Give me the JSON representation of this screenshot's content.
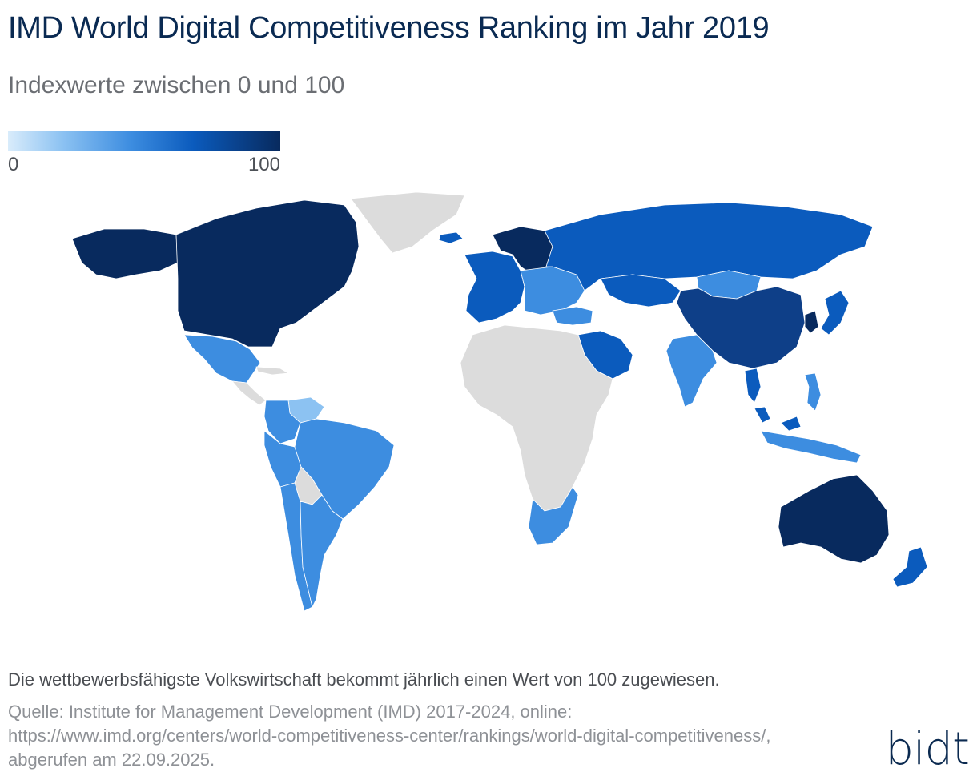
{
  "title": "IMD World Digital Competitiveness Ranking im Jahr 2019",
  "subtitle": "Indexwerte zwischen 0 und 100",
  "legend": {
    "min_label": "0",
    "max_label": "100",
    "colors": [
      "#d9ecfb",
      "#8cc2f2",
      "#3d8de0",
      "#0b5bbd",
      "#082a5e"
    ]
  },
  "no_data_color": "#dcdcdc",
  "map": {
    "type": "choropleth",
    "regions": [
      {
        "name": "North America (USA, Canada)",
        "color": "#082a5e"
      },
      {
        "name": "Alaska",
        "color": "#082a5e"
      },
      {
        "name": "Greenland",
        "color": "#dcdcdc"
      },
      {
        "name": "Iceland",
        "color": "#0b5bbd"
      },
      {
        "name": "Mexico",
        "color": "#3d8de0"
      },
      {
        "name": "Central America",
        "color": "#dcdcdc"
      },
      {
        "name": "Cuba",
        "color": "#dcdcdc"
      },
      {
        "name": "Colombia",
        "color": "#3d8de0"
      },
      {
        "name": "Venezuela",
        "color": "#8cc2f2"
      },
      {
        "name": "Brazil",
        "color": "#3d8de0"
      },
      {
        "name": "Peru",
        "color": "#3d8de0"
      },
      {
        "name": "Bolivia",
        "color": "#dcdcdc"
      },
      {
        "name": "Chile",
        "color": "#3d8de0"
      },
      {
        "name": "Argentina",
        "color": "#3d8de0"
      },
      {
        "name": "Western Europe",
        "color": "#0b5bbd"
      },
      {
        "name": "Nordics",
        "color": "#082a5e"
      },
      {
        "name": "Russia",
        "color": "#0b5bbd"
      },
      {
        "name": "Eastern Europe",
        "color": "#3d8de0"
      },
      {
        "name": "Turkey",
        "color": "#3d8de0"
      },
      {
        "name": "Kazakhstan",
        "color": "#0b5bbd"
      },
      {
        "name": "Mongolia",
        "color": "#3d8de0"
      },
      {
        "name": "China",
        "color": "#0e3f88"
      },
      {
        "name": "Korea",
        "color": "#082a5e"
      },
      {
        "name": "Japan",
        "color": "#0b5bbd"
      },
      {
        "name": "Middle East (Saudi Arabia, UAE)",
        "color": "#0b5bbd"
      },
      {
        "name": "India",
        "color": "#3d8de0"
      },
      {
        "name": "Thailand",
        "color": "#0b5bbd"
      },
      {
        "name": "Malaysia",
        "color": "#0b5bbd"
      },
      {
        "name": "Philippines",
        "color": "#3d8de0"
      },
      {
        "name": "Indonesia",
        "color": "#3d8de0"
      },
      {
        "name": "Africa",
        "color": "#dcdcdc"
      },
      {
        "name": "South Africa",
        "color": "#3d8de0"
      },
      {
        "name": "Australia",
        "color": "#082a5e"
      },
      {
        "name": "New Zealand",
        "color": "#0b5bbd"
      }
    ]
  },
  "note": "Die wettbewerbsfähigste Volkswirtschaft bekommt jährlich einen Wert von 100 zugewiesen.",
  "source": "Quelle: Institute for Management Development (IMD) 2017-2024, online: https://www.imd.org/centers/world-competitiveness-center/rankings/world-digital-competitiveness/, abgerufen am 22.09.2025.",
  "logo": "bidt"
}
